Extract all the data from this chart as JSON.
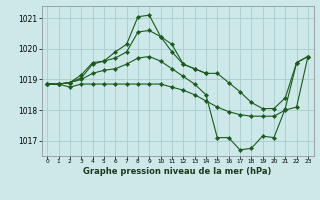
{
  "title": "Graphe pression niveau de la mer (hPa)",
  "bg_color": "#cce8e8",
  "grid_color": "#aacccc",
  "line_color": "#1a5c1a",
  "marker_color": "#1a5c1a",
  "ylim": [
    1016.5,
    1021.4
  ],
  "yticks": [
    1017,
    1018,
    1019,
    1020,
    1021
  ],
  "xlim": [
    -0.5,
    23.5
  ],
  "series": [
    {
      "x": [
        0,
        1,
        2,
        3,
        4,
        5,
        6,
        7,
        8,
        9,
        10,
        11,
        12,
        13,
        14
      ],
      "y": [
        1018.85,
        1018.85,
        1018.9,
        1019.15,
        1019.55,
        1019.6,
        1019.9,
        1020.15,
        1021.05,
        1021.1,
        1020.4,
        1020.15,
        1019.5,
        1019.35,
        1019.2
      ]
    },
    {
      "x": [
        0,
        1,
        2,
        3,
        4,
        5,
        6,
        7,
        8,
        9,
        10,
        11,
        12,
        13,
        14,
        15,
        16,
        17,
        18,
        19,
        20,
        21,
        22,
        23
      ],
      "y": [
        1018.85,
        1018.85,
        1018.9,
        1019.05,
        1019.5,
        1019.6,
        1019.7,
        1019.9,
        1020.55,
        1020.6,
        1020.4,
        1019.9,
        1019.5,
        1019.35,
        1019.2,
        1019.2,
        1018.9,
        1018.6,
        1018.25,
        1018.05,
        1018.05,
        1018.4,
        1019.55,
        1019.75
      ]
    },
    {
      "x": [
        0,
        1,
        2,
        3,
        4,
        5,
        6,
        7,
        8,
        9,
        10,
        11,
        12,
        13,
        14,
        15,
        16,
        17,
        18,
        19,
        20,
        21,
        22,
        23
      ],
      "y": [
        1018.85,
        1018.85,
        1018.9,
        1019.0,
        1019.2,
        1019.3,
        1019.35,
        1019.5,
        1019.7,
        1019.75,
        1019.6,
        1019.35,
        1019.1,
        1018.85,
        1018.5,
        1017.1,
        1017.1,
        1016.7,
        1016.75,
        1017.15,
        1017.1,
        1018.05,
        1019.55,
        1019.75
      ]
    },
    {
      "x": [
        0,
        1,
        2,
        3,
        4,
        5,
        6,
        7,
        8,
        9,
        10,
        11,
        12,
        13,
        14,
        15,
        16,
        17,
        18,
        19,
        20,
        21,
        22,
        23
      ],
      "y": [
        1018.85,
        1018.85,
        1018.75,
        1018.85,
        1018.85,
        1018.85,
        1018.85,
        1018.85,
        1018.85,
        1018.85,
        1018.85,
        1018.75,
        1018.65,
        1018.5,
        1018.3,
        1018.1,
        1017.95,
        1017.85,
        1017.8,
        1017.8,
        1017.8,
        1018.0,
        1018.1,
        1019.75
      ]
    }
  ]
}
